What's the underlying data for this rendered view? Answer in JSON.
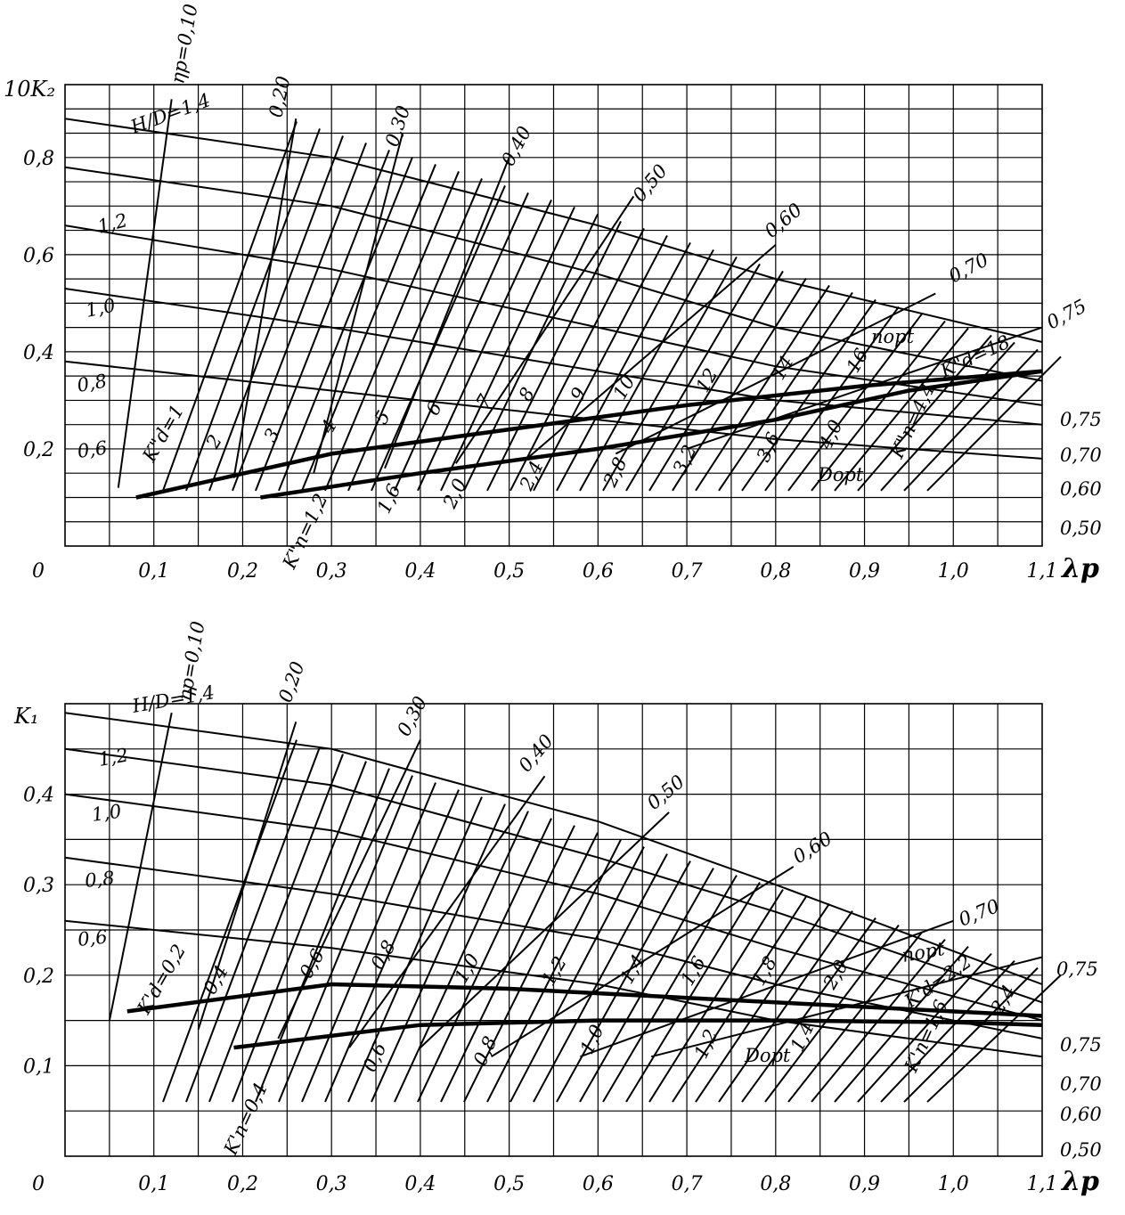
{
  "chart_data": [
    {
      "type": "line",
      "ylabel": "10K₂",
      "xlabel": "λp",
      "origin_label": "0",
      "xlim": [
        0,
        1.1
      ],
      "ylim": [
        0,
        0.95
      ],
      "grid": true,
      "x_ticks": [
        "0,1",
        "0,2",
        "0,3",
        "0,4",
        "0,5",
        "0,6",
        "0,7",
        "0,8",
        "0,9",
        "1,0",
        "1,1"
      ],
      "y_ticks": [
        "0,2",
        "0,4",
        "0,6",
        "0,8"
      ],
      "series": [
        {
          "name": "H/D=1,4",
          "points": [
            [
              0,
              0.88
            ],
            [
              0.3,
              0.8
            ],
            [
              0.6,
              0.66
            ],
            [
              0.8,
              0.55
            ],
            [
              1.1,
              0.42
            ]
          ]
        },
        {
          "name": "1,2",
          "points": [
            [
              0,
              0.78
            ],
            [
              0.3,
              0.7
            ],
            [
              0.6,
              0.56
            ],
            [
              0.8,
              0.45
            ],
            [
              1.1,
              0.34
            ]
          ]
        },
        {
          "name": "1,0",
          "points": [
            [
              0,
              0.66
            ],
            [
              0.3,
              0.57
            ],
            [
              0.6,
              0.45
            ],
            [
              0.8,
              0.37
            ],
            [
              1.1,
              0.29
            ]
          ]
        },
        {
          "name": "0,8",
          "points": [
            [
              0,
              0.53
            ],
            [
              0.3,
              0.45
            ],
            [
              0.6,
              0.36
            ],
            [
              0.8,
              0.3
            ],
            [
              1.1,
              0.25
            ]
          ]
        },
        {
          "name": "0,6",
          "points": [
            [
              0,
              0.38
            ],
            [
              0.3,
              0.32
            ],
            [
              0.6,
              0.26
            ],
            [
              0.8,
              0.22
            ],
            [
              1.1,
              0.18
            ]
          ]
        },
        {
          "name": "ηp=0,10",
          "points": [
            [
              0.06,
              0.12
            ],
            [
              0.12,
              0.92
            ]
          ]
        },
        {
          "name": "0,20",
          "points": [
            [
              0.19,
              0.14
            ],
            [
              0.26,
              0.88
            ]
          ]
        },
        {
          "name": "0,30",
          "points": [
            [
              0.28,
              0.15
            ],
            [
              0.38,
              0.85
            ]
          ]
        },
        {
          "name": "0,40",
          "points": [
            [
              0.36,
              0.16
            ],
            [
              0.5,
              0.8
            ]
          ]
        },
        {
          "name": "0,50",
          "points": [
            [
              0.44,
              0.17
            ],
            [
              0.64,
              0.72
            ]
          ]
        },
        {
          "name": "0,60",
          "points": [
            [
              0.52,
              0.18
            ],
            [
              0.8,
              0.62
            ]
          ]
        },
        {
          "name": "0,70",
          "points": [
            [
              0.62,
              0.19
            ],
            [
              0.98,
              0.52
            ]
          ]
        },
        {
          "name": "0,75",
          "points": [
            [
              0.7,
              0.2
            ],
            [
              1.1,
              0.45
            ]
          ]
        },
        {
          "name": "nopt",
          "points": [
            [
              0.08,
              0.1
            ],
            [
              0.3,
              0.19
            ],
            [
              0.5,
              0.24
            ],
            [
              0.7,
              0.29
            ],
            [
              0.9,
              0.33
            ],
            [
              1.1,
              0.36
            ]
          ]
        },
        {
          "name": "Dopt",
          "points": [
            [
              0.22,
              0.1
            ],
            [
              0.4,
              0.15
            ],
            [
              0.6,
              0.2
            ],
            [
              0.8,
              0.26
            ],
            [
              0.95,
              0.32
            ],
            [
              1.1,
              0.36
            ]
          ]
        }
      ],
      "curve_labels": [
        "K\"d=1",
        "2",
        "3",
        "4",
        "5",
        "6",
        "7",
        "8",
        "9",
        "10",
        "12",
        "14",
        "16",
        "K\"d=18",
        "K\"n=1,2",
        "1,6",
        "2,0",
        "2,4",
        "2,8",
        "3,2",
        "3,6",
        "4,0",
        "K\"n=4,4",
        "nopt",
        "Dopt",
        "0,75",
        "0,70",
        "0,60",
        "0,50"
      ]
    },
    {
      "type": "line",
      "ylabel": "K₁",
      "xlabel": "λp",
      "origin_label": "0",
      "xlim": [
        0,
        1.1
      ],
      "ylim": [
        0,
        0.5
      ],
      "grid": true,
      "x_ticks": [
        "0,1",
        "0,2",
        "0,3",
        "0,4",
        "0,5",
        "0,6",
        "0,7",
        "0,8",
        "0,9",
        "1,0",
        "1,1"
      ],
      "y_ticks": [
        "0,1",
        "0,2",
        "0,3",
        "0,4"
      ],
      "series": [
        {
          "name": "H/D=1,4",
          "points": [
            [
              0,
              0.49
            ],
            [
              0.3,
              0.45
            ],
            [
              0.6,
              0.37
            ],
            [
              0.8,
              0.3
            ],
            [
              1.1,
              0.19
            ]
          ]
        },
        {
          "name": "1,2",
          "points": [
            [
              0,
              0.45
            ],
            [
              0.3,
              0.41
            ],
            [
              0.6,
              0.33
            ],
            [
              0.8,
              0.27
            ],
            [
              1.1,
              0.17
            ]
          ]
        },
        {
          "name": "1,0",
          "points": [
            [
              0,
              0.4
            ],
            [
              0.3,
              0.36
            ],
            [
              0.6,
              0.29
            ],
            [
              0.8,
              0.23
            ],
            [
              1.1,
              0.15
            ]
          ]
        },
        {
          "name": "0,8",
          "points": [
            [
              0,
              0.33
            ],
            [
              0.3,
              0.29
            ],
            [
              0.6,
              0.24
            ],
            [
              0.8,
              0.19
            ],
            [
              1.1,
              0.13
            ]
          ]
        },
        {
          "name": "0,6",
          "points": [
            [
              0,
              0.26
            ],
            [
              0.3,
              0.23
            ],
            [
              0.6,
              0.19
            ],
            [
              0.8,
              0.15
            ],
            [
              1.1,
              0.11
            ]
          ]
        },
        {
          "name": "ηp=0,10",
          "points": [
            [
              0.05,
              0.15
            ],
            [
              0.12,
              0.49
            ]
          ]
        },
        {
          "name": "0,20",
          "points": [
            [
              0.15,
              0.14
            ],
            [
              0.26,
              0.48
            ]
          ]
        },
        {
          "name": "0,30",
          "points": [
            [
              0.24,
              0.13
            ],
            [
              0.4,
              0.46
            ]
          ]
        },
        {
          "name": "0,40",
          "points": [
            [
              0.32,
              0.12
            ],
            [
              0.54,
              0.42
            ]
          ]
        },
        {
          "name": "0,50",
          "points": [
            [
              0.4,
              0.12
            ],
            [
              0.68,
              0.38
            ]
          ]
        },
        {
          "name": "0,60",
          "points": [
            [
              0.48,
              0.11
            ],
            [
              0.82,
              0.32
            ]
          ]
        },
        {
          "name": "0,70",
          "points": [
            [
              0.58,
              0.11
            ],
            [
              1.0,
              0.26
            ]
          ]
        },
        {
          "name": "0,75",
          "points": [
            [
              0.66,
              0.11
            ],
            [
              1.1,
              0.22
            ]
          ]
        },
        {
          "name": "nopt",
          "points": [
            [
              0.07,
              0.16
            ],
            [
              0.3,
              0.19
            ],
            [
              0.5,
              0.185
            ],
            [
              0.7,
              0.175
            ],
            [
              0.9,
              0.165
            ],
            [
              1.1,
              0.155
            ]
          ]
        },
        {
          "name": "Dopt",
          "points": [
            [
              0.19,
              0.12
            ],
            [
              0.4,
              0.145
            ],
            [
              0.6,
              0.15
            ],
            [
              0.8,
              0.15
            ],
            [
              1.0,
              0.148
            ],
            [
              1.1,
              0.145
            ]
          ]
        }
      ],
      "curve_labels": [
        "K'd=0,2",
        "0,4",
        "0,6",
        "0,8",
        "1,0",
        "1,2",
        "1,4",
        "1,6",
        "1,8",
        "2,0",
        "K'd=2,2",
        "2,4",
        "K'n=0,4",
        "0,6",
        "0,8",
        "1,0",
        "1,2",
        "1,4",
        "K'n=1,6",
        "nopt",
        "Dopt",
        "0,75",
        "0,70",
        "0,60",
        "0,50"
      ]
    }
  ]
}
